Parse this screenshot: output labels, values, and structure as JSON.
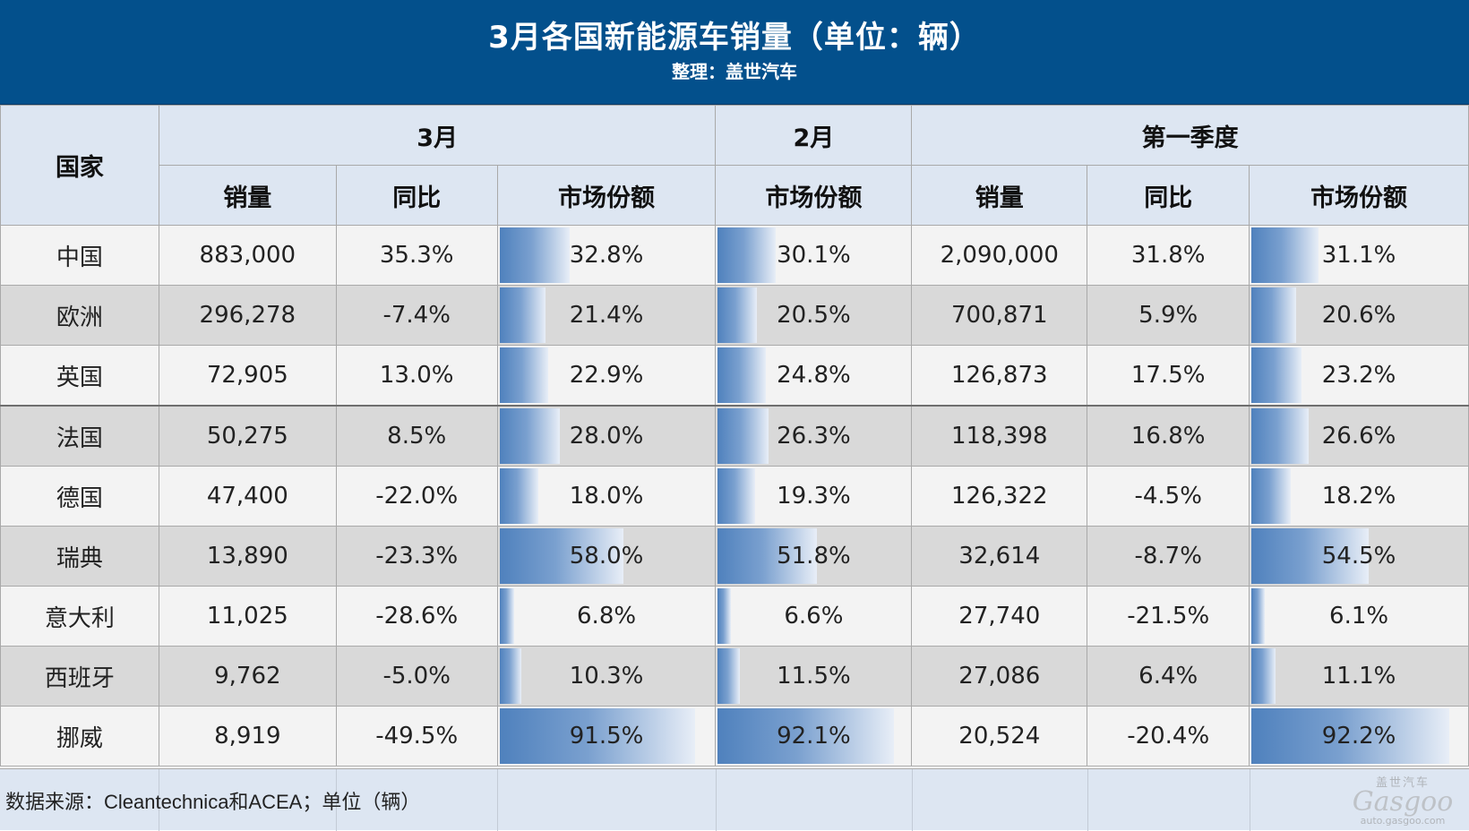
{
  "header": {
    "title": "3月各国新能源车销量（单位：辆）",
    "subtitle": "整理：盖世汽车"
  },
  "table": {
    "country_header": "国家",
    "groups": [
      "3月",
      "2月",
      "第一季度"
    ],
    "subheaders": [
      "销量",
      "同比",
      "市场份额",
      "市场份额",
      "销量",
      "同比",
      "市场份额"
    ],
    "rows": [
      {
        "country": "中国",
        "mar_sales": "883,000",
        "mar_yoy": "35.3%",
        "mar_share": "32.8%",
        "feb_share": "30.1%",
        "q1_sales": "2,090,000",
        "q1_yoy": "31.8%",
        "q1_share": "31.1%"
      },
      {
        "country": "欧洲",
        "mar_sales": "296,278",
        "mar_yoy": "-7.4%",
        "mar_share": "21.4%",
        "feb_share": "20.5%",
        "q1_sales": "700,871",
        "q1_yoy": "5.9%",
        "q1_share": "20.6%"
      },
      {
        "country": "英国",
        "mar_sales": "72,905",
        "mar_yoy": "13.0%",
        "mar_share": "22.9%",
        "feb_share": "24.8%",
        "q1_sales": "126,873",
        "q1_yoy": "17.5%",
        "q1_share": "23.2%"
      },
      {
        "country": "法国",
        "mar_sales": "50,275",
        "mar_yoy": "8.5%",
        "mar_share": "28.0%",
        "feb_share": "26.3%",
        "q1_sales": "118,398",
        "q1_yoy": "16.8%",
        "q1_share": "26.6%"
      },
      {
        "country": "德国",
        "mar_sales": "47,400",
        "mar_yoy": "-22.0%",
        "mar_share": "18.0%",
        "feb_share": "19.3%",
        "q1_sales": "126,322",
        "q1_yoy": "-4.5%",
        "q1_share": "18.2%"
      },
      {
        "country": "瑞典",
        "mar_sales": "13,890",
        "mar_yoy": "-23.3%",
        "mar_share": "58.0%",
        "feb_share": "51.8%",
        "q1_sales": "32,614",
        "q1_yoy": "-8.7%",
        "q1_share": "54.5%"
      },
      {
        "country": "意大利",
        "mar_sales": "11,025",
        "mar_yoy": "-28.6%",
        "mar_share": "6.8%",
        "feb_share": "6.6%",
        "q1_sales": "27,740",
        "q1_yoy": "-21.5%",
        "q1_share": "6.1%"
      },
      {
        "country": "西班牙",
        "mar_sales": "9,762",
        "mar_yoy": "-5.0%",
        "mar_share": "10.3%",
        "feb_share": "11.5%",
        "q1_sales": "27,086",
        "q1_yoy": "6.4%",
        "q1_share": "11.1%"
      },
      {
        "country": "挪威",
        "mar_sales": "8,919",
        "mar_yoy": "-49.5%",
        "mar_share": "91.5%",
        "feb_share": "92.1%",
        "q1_sales": "20,524",
        "q1_yoy": "-20.4%",
        "q1_share": "92.2%"
      }
    ]
  },
  "footer": {
    "note": "数据来源：Cleantechnica和ACEA；单位（辆）"
  },
  "watermark": {
    "cn": "盖世汽车",
    "word": "Gasgoo",
    "url": "auto.gasgoo.com"
  },
  "colors": {
    "header_bg": "#03508c",
    "positive": "#ee1c1c",
    "negative": "#1faa4d",
    "bar": "#4f81bd"
  }
}
